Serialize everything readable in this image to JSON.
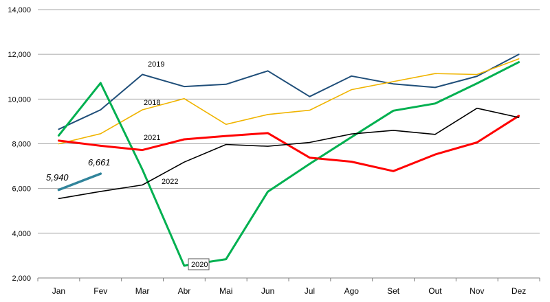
{
  "chart_data": {
    "type": "line",
    "title": "",
    "xlabel": "",
    "ylabel": "",
    "categories": [
      "Jan",
      "Fev",
      "Mar",
      "Abr",
      "Mai",
      "Jun",
      "Jul",
      "Ago",
      "Set",
      "Out",
      "Nov",
      "Dez"
    ],
    "ylim": [
      2000,
      14000
    ],
    "yticks": [
      "2,000",
      "4,000",
      "6,000",
      "8,000",
      "10,000",
      "12,000",
      "14,000"
    ],
    "ytick_values": [
      2000,
      4000,
      6000,
      8000,
      10000,
      12000,
      14000
    ],
    "grid": true,
    "series": [
      {
        "name": "2019",
        "color": "#1f4e79",
        "values": [
          8650,
          9520,
          11100,
          10560,
          10660,
          11260,
          10110,
          11030,
          10680,
          10520,
          11020,
          12000
        ]
      },
      {
        "name": "2018",
        "color": "#f0b400",
        "values": [
          8000,
          8450,
          9520,
          10020,
          8870,
          9310,
          9500,
          10420,
          10780,
          11140,
          11100,
          11800
        ]
      },
      {
        "name": "2020",
        "color": "#00b050",
        "values": [
          8370,
          10720,
          6850,
          2550,
          2840,
          5860,
          7100,
          8300,
          9480,
          9800,
          10700,
          11650
        ]
      },
      {
        "name": "2021",
        "color": "#ff0000",
        "values": [
          8140,
          7910,
          7720,
          8200,
          8350,
          8480,
          7380,
          7200,
          6780,
          7520,
          8060,
          9250
        ]
      },
      {
        "name": "2022",
        "color": "#000000",
        "values": [
          5550,
          5870,
          6160,
          7180,
          7970,
          7890,
          8060,
          8440,
          8600,
          8420,
          9590,
          9180
        ]
      },
      {
        "name": "",
        "color": "#31849b",
        "values": [
          5940,
          6661,
          null,
          null,
          null,
          null,
          null,
          null,
          null,
          null,
          null,
          null
        ]
      }
    ],
    "data_labels": [
      "5,940",
      "6,661"
    ]
  }
}
